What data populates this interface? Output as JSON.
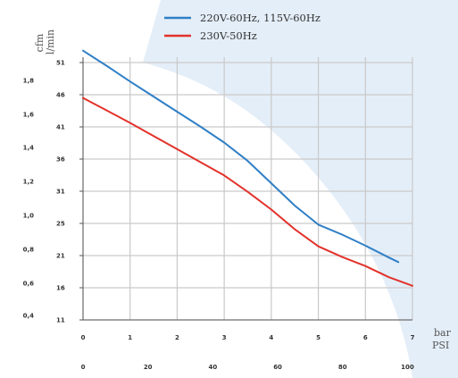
{
  "chart_data": {
    "type": "line",
    "title": "",
    "legend_placement": "top",
    "colors": {
      "background_swoosh": "#e4eef8",
      "series_blue": "#2f7fc6",
      "series_red": "#e2322b"
    },
    "y_axis": {
      "units": [
        "cfm",
        "l/min"
      ],
      "cfm_ticks": [
        "1,8",
        "1,6",
        "1,4",
        "1,2",
        "1,0",
        "0,8",
        "0,6",
        "0,4"
      ],
      "lmin_ticks": [
        "51",
        "46",
        "41",
        "36",
        "31",
        "25",
        "21",
        "16",
        "11"
      ],
      "ylim_lmin": [
        11,
        51
      ]
    },
    "x_axis": {
      "units": [
        "bar",
        "PSI"
      ],
      "bar_ticks": [
        "0",
        "1",
        "2",
        "3",
        "4",
        "5",
        "6",
        "7"
      ],
      "psi_ticks": [
        "0",
        "20",
        "40",
        "60",
        "80",
        "100"
      ],
      "xlim_bar": [
        0,
        7
      ]
    },
    "grid": true,
    "series": [
      {
        "name": "220V-60Hz, 115V-60Hz",
        "color": "#2f7fc6",
        "x": [
          0,
          0.5,
          1,
          1.5,
          2,
          2.5,
          3,
          3.5,
          4,
          4.5,
          5,
          5.5,
          6,
          6.5,
          6.7
        ],
        "y": [
          52,
          49.7,
          47.3,
          45,
          42.7,
          40.4,
          38,
          35.2,
          31.8,
          28.4,
          25.5,
          24,
          22.3,
          20.5,
          19.8
        ]
      },
      {
        "name": "230V-50Hz",
        "color": "#e2322b",
        "x": [
          0,
          0.5,
          1,
          1.5,
          2,
          2.5,
          3,
          3.5,
          4,
          4.5,
          5,
          5.5,
          6,
          6.5,
          7
        ],
        "y": [
          44.8,
          42.9,
          41,
          39,
          37,
          35,
          33,
          30.5,
          27.8,
          24.8,
          22.2,
          20.6,
          19.2,
          17.5,
          16.2
        ]
      }
    ]
  }
}
